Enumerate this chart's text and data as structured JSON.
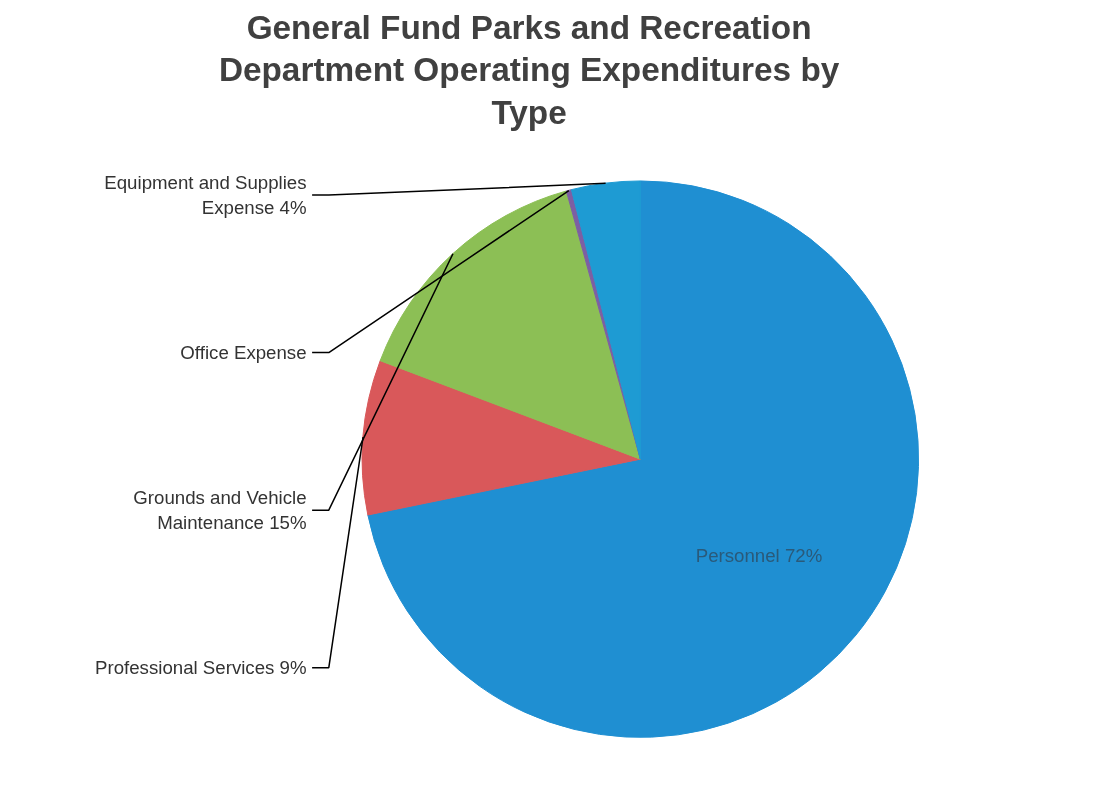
{
  "chart_data": {
    "type": "pie",
    "title": "General Fund Parks and Recreation Department Operating Expenditures by Type",
    "categories": [
      "Personnel",
      "Professional Services",
      "Grounds and Vehicle Maintenance",
      "Office Expense",
      "Equipment and Supplies Expense"
    ],
    "values": [
      72,
      9,
      15,
      0.3,
      4
    ],
    "colors": [
      "#1f8fd2",
      "#d9585a",
      "#8cbf55",
      "#7d5fa3",
      "#1e9bd3"
    ],
    "value_labels": [
      "72%",
      "9%",
      "15%",
      null,
      "4%"
    ]
  }
}
